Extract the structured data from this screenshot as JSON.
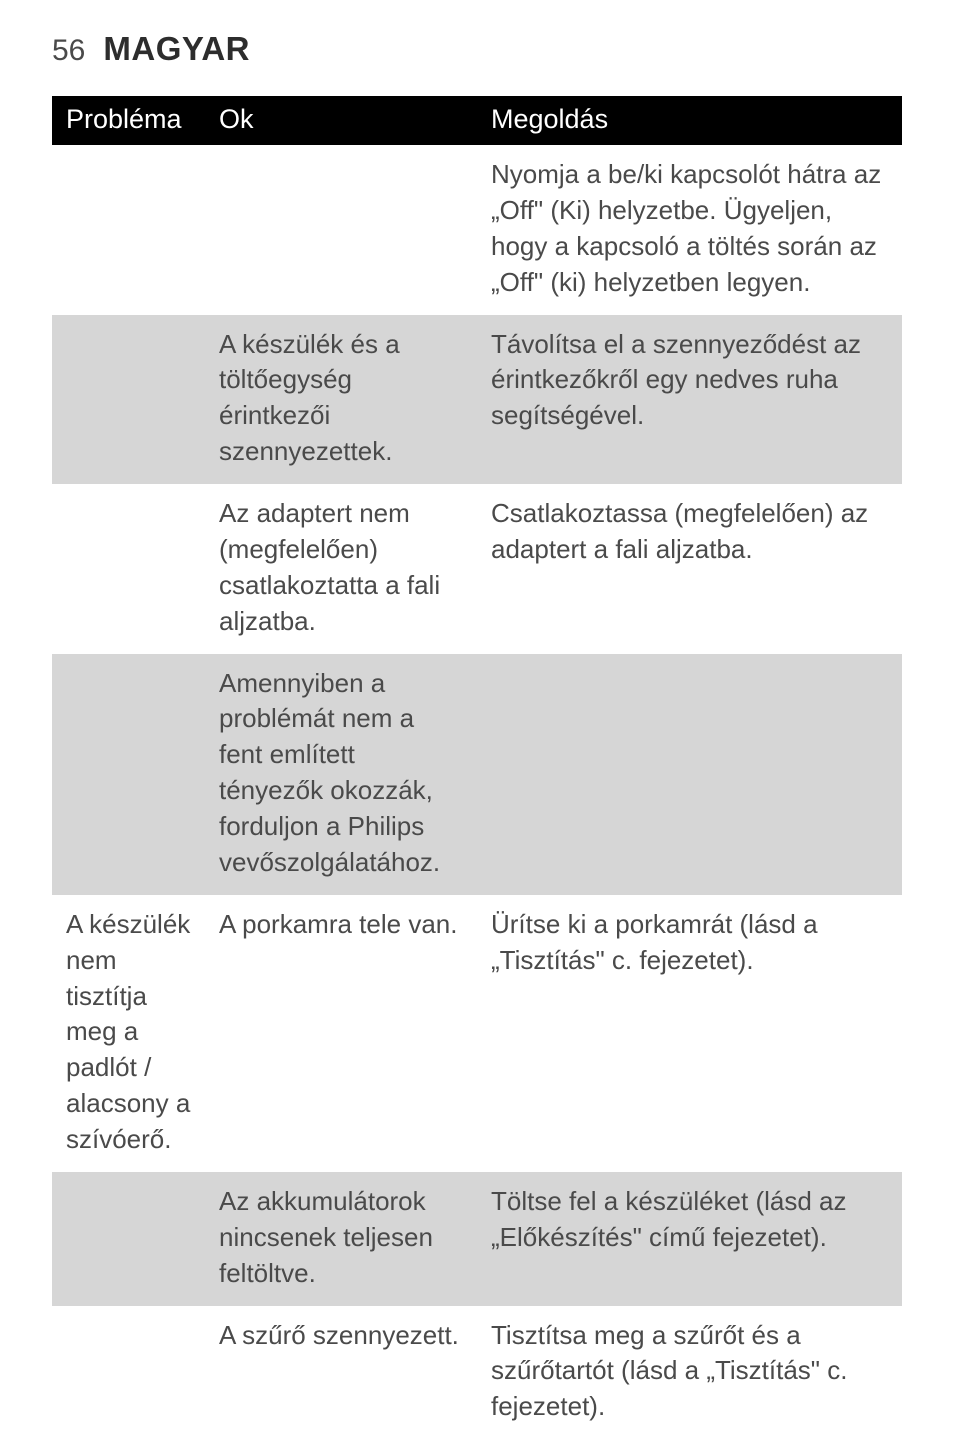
{
  "header": {
    "page_number": "56",
    "title": "MAGYAR"
  },
  "table": {
    "columns": [
      "Probléma",
      "Ok",
      "Megoldás"
    ],
    "rows": [
      {
        "shaded": false,
        "problem": "",
        "cause": "",
        "solution": "Nyomja a be/ki kapcsolót hátra az „Off\" (Ki) helyzetbe. Ügyeljen, hogy a kapcsoló a töltés során az „Off\" (ki) helyzetben legyen."
      },
      {
        "shaded": true,
        "problem": "",
        "cause": "A készülék és a töltőegység érintkezői szennyezettek.",
        "solution": "Távolítsa el a szennyeződést az érintkezőkről egy nedves ruha segítségével."
      },
      {
        "shaded": false,
        "problem": "",
        "cause": "Az adaptert nem (megfelelően) csatlakoztatta a fali aljzatba.",
        "solution": "Csatlakoztassa (megfelelően) az adaptert a fali aljzatba."
      },
      {
        "shaded": true,
        "problem": "",
        "cause": "Amennyiben a problémát nem a fent említett tényezők okozzák, forduljon a Philips vevőszolgálatához.",
        "solution": ""
      },
      {
        "shaded": false,
        "problem": "A készülék nem tisztítja meg a padlót / alacsony a szívóerő.",
        "cause": "A porkamra tele van.",
        "solution": "Ürítse ki a porkamrát (lásd a „Tisztítás\" c. fejezetet)."
      },
      {
        "shaded": true,
        "problem": "",
        "cause": "Az akkumulátorok nincsenek teljesen feltöltve.",
        "solution": "Töltse fel a készüléket (lásd az „Előkészítés\" című fejezetet)."
      },
      {
        "shaded": false,
        "problem": "",
        "cause": "A szűrő szennyezett.",
        "solution": "Tisztítsa meg a szűrőt és a szűrőtartót (lásd a „Tisztítás\" c. fejezetet)."
      }
    ]
  }
}
